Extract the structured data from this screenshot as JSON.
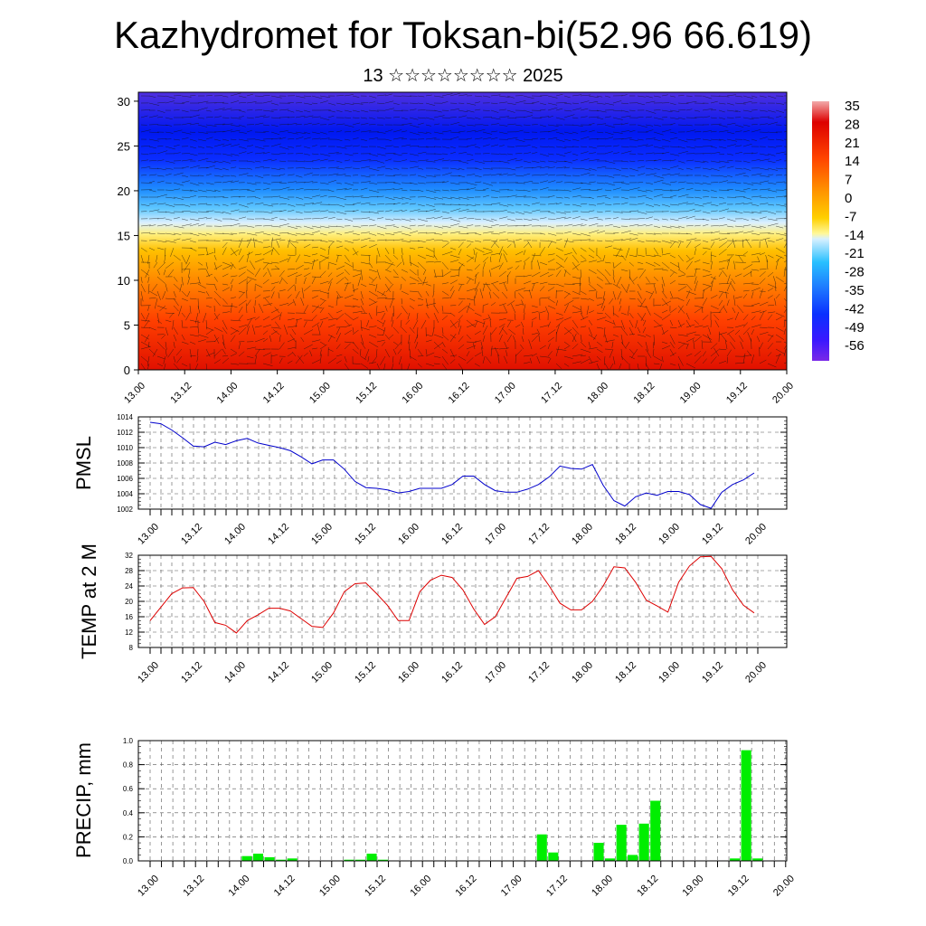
{
  "header": {
    "title": "Kazhydromet for Toksan-bi(52.96 66.619)",
    "subtitle": "13 ☆☆☆☆☆☆☆☆ 2025"
  },
  "colors": {
    "pmsl_line": "#0000cc",
    "temp_line": "#dd0000",
    "precip_bar": "#00ee00",
    "colormap": [
      "#7a28e8",
      "#3a18ff",
      "#0a30ff",
      "#1e78ff",
      "#28c0ff",
      "#d8f0ff",
      "#fff89a",
      "#ffd000",
      "#ff9000",
      "#ff4400",
      "#dd0000",
      "#f2aaaa"
    ]
  },
  "chart_data": [
    {
      "type": "heatmap",
      "x_tick_labels": [
        "13.00",
        "13.12",
        "14.00",
        "14.12",
        "15.00",
        "15.12",
        "16.00",
        "16.12",
        "17.00",
        "17.12",
        "18.00",
        "18.12",
        "19.00",
        "19.12",
        "20.00"
      ],
      "y_tick_labels": [
        "0",
        "5",
        "10",
        "15",
        "20",
        "25",
        "30"
      ],
      "ylim": [
        0,
        31
      ],
      "colorbar_labels": [
        "35",
        "28",
        "21",
        "14",
        "7",
        "0",
        "-7",
        "-14",
        "-21",
        "-28",
        "-35",
        "-42",
        "-49",
        "-56"
      ],
      "overlay": "wind vectors"
    },
    {
      "type": "line",
      "ylabel": "PMSL",
      "x_tick_labels": [
        "13.00",
        "13.12",
        "14.00",
        "14.12",
        "15.00",
        "15.12",
        "16.00",
        "16.12",
        "17.00",
        "17.12",
        "18.00",
        "18.12",
        "19.00",
        "19.12",
        "20.00"
      ],
      "y_tick_labels": [
        "1014",
        "1012",
        "1010",
        "1008",
        "1006",
        "1004",
        "1002"
      ],
      "ylim": [
        1002,
        1014
      ],
      "grid": true,
      "y": [
        1013.3,
        1013.1,
        1012.3,
        1011.3,
        1010.2,
        1010.1,
        1010.7,
        1010.4,
        1010.9,
        1011.2,
        1010.6,
        1010.3,
        1010.0,
        1009.6,
        1008.8,
        1007.9,
        1008.4,
        1008.4,
        1007.2,
        1005.6,
        1004.8,
        1004.7,
        1004.5,
        1004.1,
        1004.3,
        1004.7,
        1004.7,
        1004.7,
        1005.2,
        1006.3,
        1006.3,
        1005.2,
        1004.4,
        1004.2,
        1004.2,
        1004.6,
        1005.2,
        1006.2,
        1007.6,
        1007.3,
        1007.2,
        1007.8,
        1005.1,
        1003.1,
        1002.4,
        1003.6,
        1004.1,
        1003.8,
        1004.3,
        1004.3,
        1003.9,
        1002.6,
        1002.1,
        1004.2,
        1005.2,
        1005.8,
        1006.7
      ]
    },
    {
      "type": "line",
      "ylabel": "TEMP at 2 M",
      "x_tick_labels": [
        "13.00",
        "13.12",
        "14.00",
        "14.12",
        "15.00",
        "15.12",
        "16.00",
        "16.12",
        "17.00",
        "17.12",
        "18.00",
        "18.12",
        "19.00",
        "19.12",
        "20.00"
      ],
      "y_tick_labels": [
        "32",
        "28",
        "24",
        "20",
        "16",
        "12",
        "8"
      ],
      "ylim": [
        8,
        32
      ],
      "grid": true,
      "y": [
        15.0,
        18.5,
        22.0,
        23.5,
        23.6,
        20.0,
        14.5,
        13.8,
        11.8,
        15.0,
        16.5,
        18.2,
        18.2,
        17.5,
        15.5,
        13.5,
        13.2,
        17.0,
        22.5,
        24.6,
        24.8,
        22.0,
        19.0,
        15.0,
        15.0,
        22.5,
        25.5,
        26.8,
        26.2,
        23.0,
        18.0,
        14.0,
        16.0,
        21.0,
        26.0,
        26.5,
        28.0,
        24.0,
        19.5,
        17.8,
        17.8,
        20.0,
        24.0,
        29.0,
        28.7,
        25.0,
        20.3,
        18.8,
        17.2,
        25.0,
        29.2,
        31.6,
        31.7,
        28.5,
        23.0,
        19.0,
        17.0
      ]
    },
    {
      "type": "bar",
      "ylabel": "PRECIP, mm",
      "x_tick_labels": [
        "13.00",
        "13.12",
        "14.00",
        "14.12",
        "15.00",
        "15.12",
        "16.00",
        "16.12",
        "17.00",
        "17.12",
        "18.00",
        "18.12",
        "19.00",
        "19.12",
        "20.00"
      ],
      "y_tick_labels": [
        "1.0",
        "0.8",
        "0.6",
        "0.4",
        "0.2",
        "0.0"
      ],
      "ylim": [
        0,
        1.0
      ],
      "grid": true,
      "bins_per_day": 8,
      "values": [
        0,
        0,
        0,
        0,
        0,
        0,
        0,
        0,
        0.04,
        0.06,
        0.03,
        0.01,
        0.02,
        0,
        0,
        0,
        0,
        0.01,
        0.01,
        0.06,
        0.01,
        0,
        0,
        0,
        0,
        0,
        0,
        0,
        0,
        0,
        0,
        0,
        0,
        0,
        0.22,
        0.07,
        0,
        0,
        0,
        0.15,
        0.02,
        0.3,
        0.05,
        0.31,
        0.5,
        0,
        0,
        0,
        0,
        0,
        0,
        0.02,
        0.92,
        0.02,
        0,
        0
      ]
    }
  ]
}
